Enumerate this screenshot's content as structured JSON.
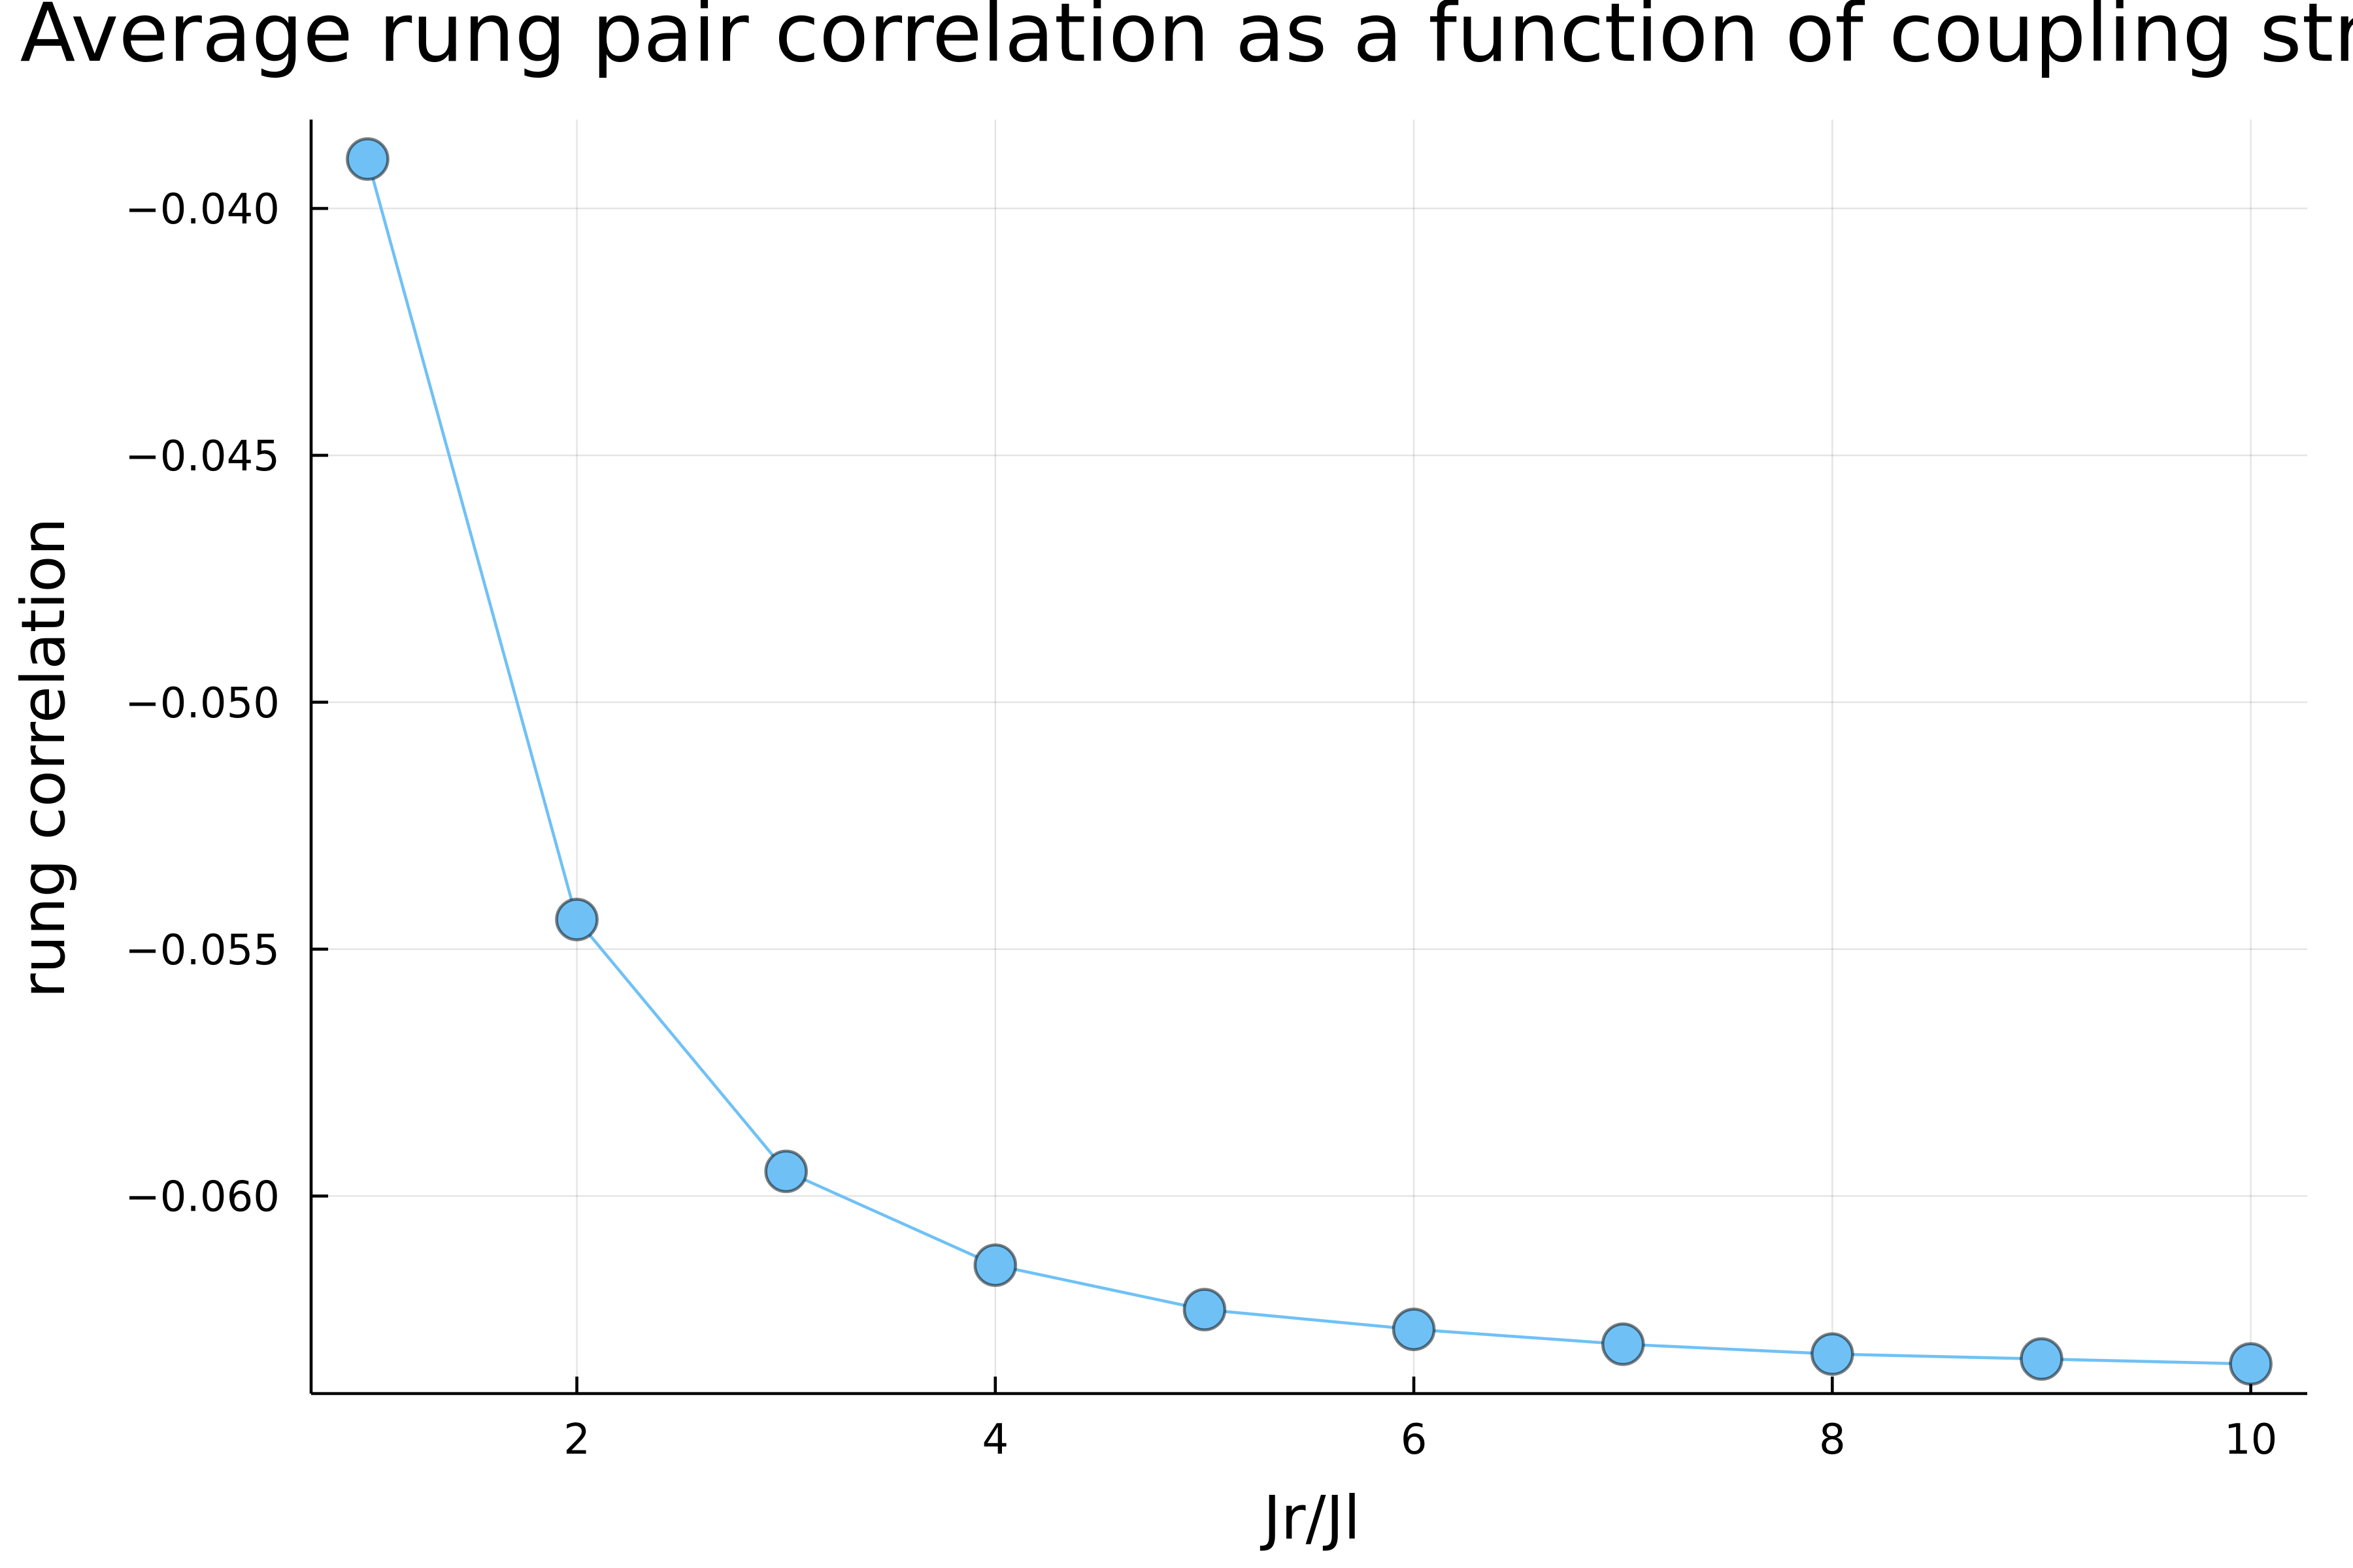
{
  "chart_data": {
    "type": "line",
    "title": "Average rung pair correlation as a function of coupling strength",
    "xlabel": "Jr/Jl",
    "ylabel": "rung correlation",
    "xlim": [
      0.73,
      10.27
    ],
    "ylim": [
      -0.064,
      -0.0382
    ],
    "xticks": [
      2,
      4,
      6,
      8,
      10
    ],
    "xtick_labels": [
      "2",
      "4",
      "6",
      "8",
      "10"
    ],
    "yticks": [
      -0.06,
      -0.055,
      -0.05,
      -0.045,
      -0.04
    ],
    "ytick_labels": [
      "−0.060",
      "−0.055",
      "−0.050",
      "−0.045",
      "−0.040"
    ],
    "grid": true,
    "legend": "none",
    "series": [
      {
        "x": [
          1,
          2,
          3,
          4,
          5,
          6,
          7,
          8,
          9,
          10
        ],
        "values": [
          -0.039,
          -0.0544,
          -0.0595,
          -0.0614,
          -0.0623,
          -0.0627,
          -0.063,
          -0.0632,
          -0.0633,
          -0.0634
        ],
        "color": "#6fc1f5"
      }
    ]
  }
}
